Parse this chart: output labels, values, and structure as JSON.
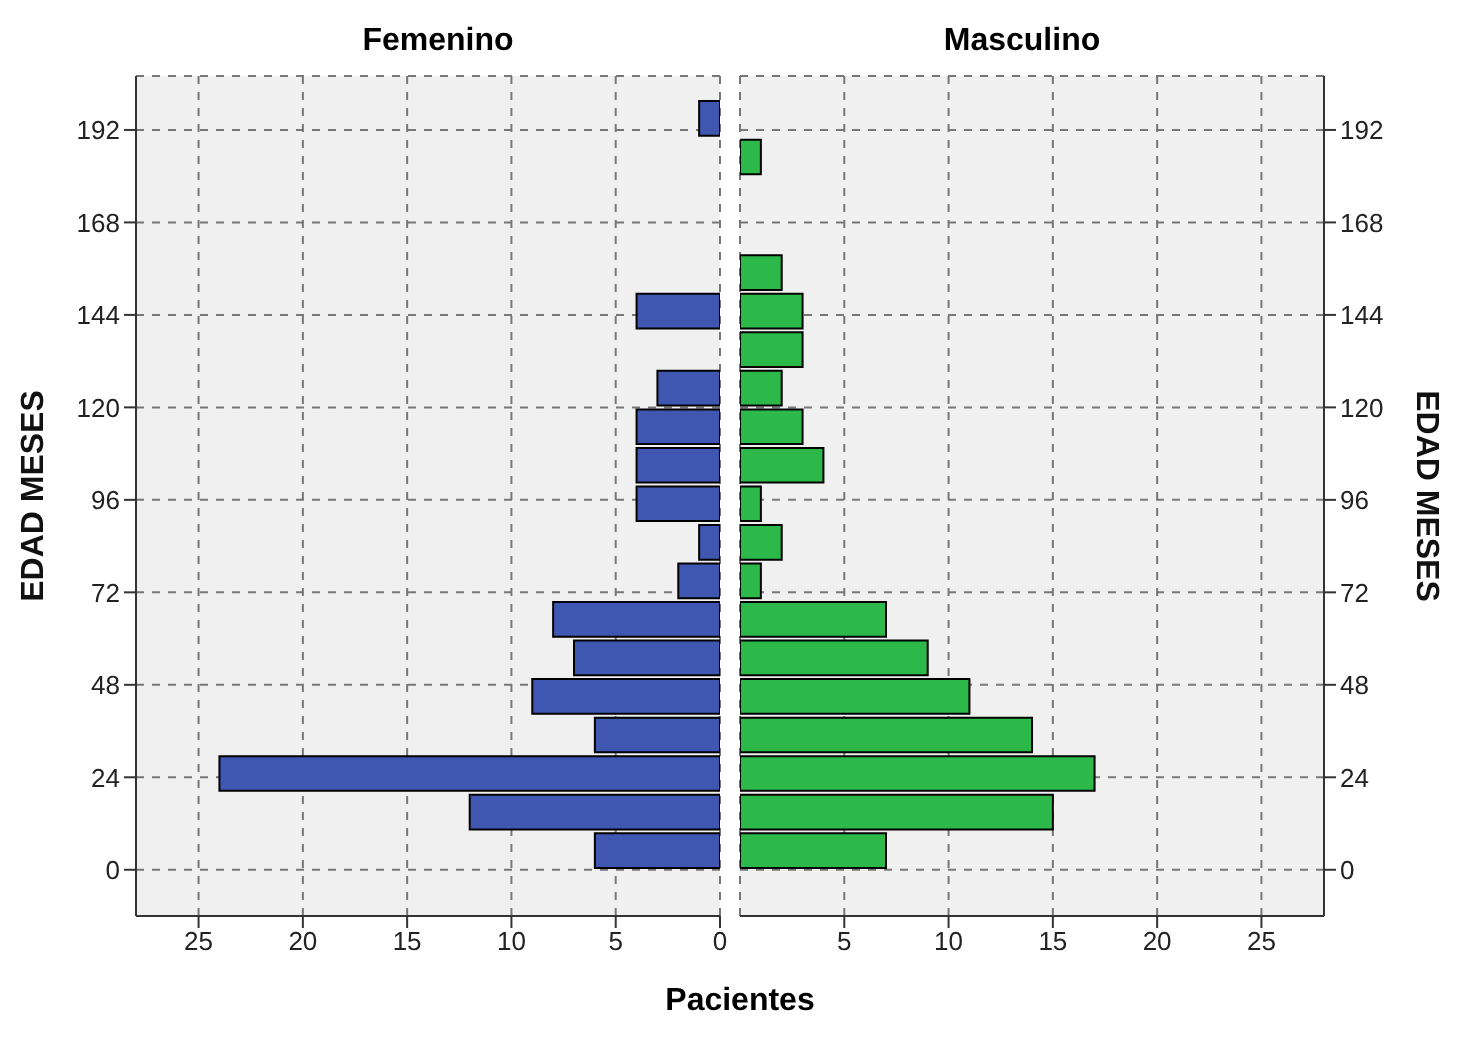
{
  "chart_data": [
    {
      "type": "histogram",
      "orientation": "horizontal",
      "title": "Femenino",
      "xlabel": "Pacientes",
      "ylabel": "EDAD MESES",
      "bins": [
        0,
        10,
        20,
        30,
        40,
        50,
        60,
        70,
        80,
        90,
        100,
        110,
        120,
        130,
        140,
        150,
        160,
        170,
        180,
        190,
        200
      ],
      "values": [
        6,
        12,
        24,
        6,
        9,
        7,
        8,
        2,
        1,
        4,
        4,
        4,
        3,
        0,
        4,
        0,
        0,
        0,
        0,
        1
      ],
      "color": "#3f57b0",
      "xlim": [
        28,
        0
      ],
      "xticks": [
        25,
        20,
        15,
        10,
        5,
        0
      ],
      "ylim": [
        -12,
        206
      ],
      "yticks": [
        0,
        24,
        48,
        72,
        96,
        120,
        144,
        168,
        192
      ],
      "grid": true,
      "legend": false
    },
    {
      "type": "histogram",
      "orientation": "horizontal",
      "title": "Masculino",
      "ylabel": "EDAD MESES",
      "bins": [
        0,
        10,
        20,
        30,
        40,
        50,
        60,
        70,
        80,
        90,
        100,
        110,
        120,
        130,
        140,
        150,
        160,
        170,
        180,
        190,
        200
      ],
      "values": [
        7,
        15,
        17,
        14,
        11,
        9,
        7,
        1,
        2,
        1,
        4,
        3,
        2,
        3,
        3,
        2,
        0,
        0,
        1,
        0
      ],
      "color": "#2db84a",
      "xlim": [
        0,
        28
      ],
      "xticks": [
        5,
        10,
        15,
        20,
        25
      ],
      "ylim": [
        -12,
        206
      ],
      "yticks": [
        0,
        24,
        48,
        72,
        96,
        120,
        144,
        168,
        192
      ],
      "grid": true,
      "legend": false
    }
  ]
}
